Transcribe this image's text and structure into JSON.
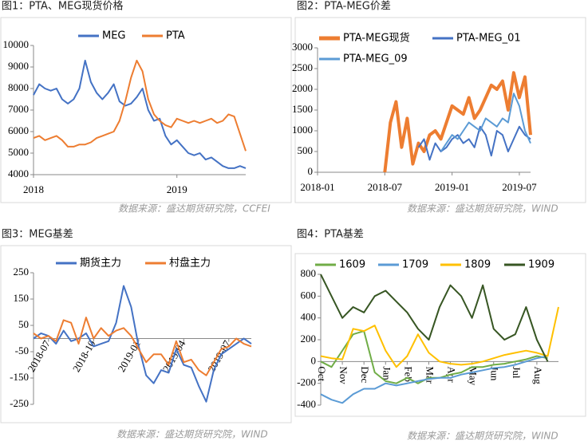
{
  "chart_data": [
    {
      "type": "line",
      "title": "图1：PTA、MEG现货价格",
      "source": "数据来源：盛达期货研究院，CCFEI",
      "categories": [
        "2018",
        null,
        null,
        null,
        null,
        null,
        null,
        null,
        null,
        null,
        null,
        null,
        null,
        null,
        null,
        null,
        null,
        null,
        null,
        null,
        null,
        null,
        null,
        null,
        null,
        "2019",
        null,
        null,
        null,
        null,
        null,
        null,
        null,
        null,
        null,
        null,
        null,
        null
      ],
      "ylim": [
        4000,
        10000
      ],
      "yticks": [
        4000,
        5000,
        6000,
        7000,
        8000,
        9000,
        10000
      ],
      "legend": "top",
      "series": [
        {
          "name": "MEG",
          "color": "#4472c4",
          "values": [
            7700,
            8200,
            8000,
            7900,
            8000,
            7500,
            7300,
            7500,
            8000,
            9300,
            8300,
            7800,
            7500,
            7800,
            8200,
            7400,
            7200,
            7300,
            7600,
            8000,
            7000,
            6500,
            6600,
            5800,
            5400,
            5600,
            5300,
            5000,
            4900,
            5000,
            4700,
            4800,
            4600,
            4400,
            4300,
            4300,
            4400,
            4300
          ]
        },
        {
          "name": "PTA",
          "color": "#ed7d31",
          "values": [
            5700,
            5800,
            5600,
            5700,
            5800,
            5600,
            5300,
            5300,
            5400,
            5400,
            5500,
            5700,
            5800,
            5900,
            6000,
            6500,
            7400,
            8500,
            9300,
            8800,
            7500,
            6800,
            6500,
            6300,
            6200,
            6600,
            6500,
            6400,
            6500,
            6400,
            6500,
            6600,
            6400,
            6500,
            6800,
            6700,
            5900,
            5100
          ]
        }
      ]
    },
    {
      "type": "line",
      "title": "图2：PTA-MEG价差",
      "source": "数据来源：盛达期货研究院，WIND",
      "categories": [
        "2018-01",
        null,
        null,
        null,
        null,
        null,
        null,
        null,
        null,
        null,
        null,
        null,
        "2018-07",
        null,
        null,
        null,
        null,
        null,
        null,
        null,
        null,
        null,
        null,
        null,
        "2019-01",
        null,
        null,
        null,
        null,
        null,
        null,
        null,
        null,
        null,
        null,
        null,
        "2019-07",
        null,
        null
      ],
      "ylim": [
        0,
        3000
      ],
      "yticks": [
        0,
        500,
        1000,
        1500,
        2000,
        2500,
        3000
      ],
      "legend": "upper left",
      "series": [
        {
          "name": "PTA-MEG现货",
          "color": "#ed7d31",
          "values": [
            null,
            null,
            null,
            null,
            null,
            null,
            null,
            null,
            null,
            null,
            null,
            null,
            0,
            1200,
            1700,
            600,
            1300,
            200,
            700,
            500,
            900,
            1000,
            800,
            1200,
            1600,
            1500,
            1400,
            1800,
            1300,
            1500,
            1800,
            2100,
            2000,
            2200,
            1500,
            2400,
            1800,
            2300,
            900
          ]
        },
        {
          "name": "PTA-MEG_01",
          "color": "#4472c4",
          "values": [
            null,
            null,
            null,
            null,
            null,
            null,
            null,
            null,
            null,
            null,
            null,
            null,
            null,
            null,
            null,
            null,
            null,
            null,
            600,
            800,
            300,
            700,
            500,
            600,
            800,
            900,
            700,
            800,
            600,
            1100,
            900,
            400,
            1000,
            900,
            500,
            800,
            1100,
            900,
            800
          ]
        },
        {
          "name": "PTA-MEG_09",
          "color": "#5b9bd5",
          "values": [
            null,
            null,
            null,
            null,
            null,
            null,
            null,
            null,
            null,
            null,
            null,
            null,
            null,
            null,
            null,
            null,
            null,
            null,
            null,
            null,
            null,
            null,
            500,
            700,
            900,
            800,
            1000,
            1200,
            1100,
            1000,
            1300,
            1200,
            1100,
            1300,
            1200,
            1900,
            1600,
            1000,
            700
          ]
        }
      ]
    },
    {
      "type": "line",
      "title": "图3：MEG基差",
      "source": "数据来源：盛达期货研究院，WIND",
      "categories": [
        null,
        null,
        "2018-07",
        null,
        null,
        null,
        null,
        null,
        "2018-10",
        null,
        null,
        null,
        null,
        null,
        "2019-01",
        null,
        null,
        null,
        null,
        null,
        "2019-04",
        null,
        null,
        null,
        null,
        null,
        "2019-07",
        null,
        null,
        null
      ],
      "ylim": [
        -250,
        250
      ],
      "yticks": [
        -250,
        -150,
        -50,
        50,
        150,
        250
      ],
      "legend": "top",
      "series": [
        {
          "name": "期货主力",
          "color": "#4472c4",
          "values": [
            0,
            20,
            10,
            -20,
            30,
            -10,
            0,
            20,
            -30,
            -20,
            -10,
            60,
            200,
            120,
            -30,
            -140,
            -170,
            -120,
            -130,
            -40,
            -100,
            -110,
            -180,
            -240,
            -120,
            -60,
            -40,
            -20,
            0,
            -20
          ]
        },
        {
          "name": "村盘主力",
          "color": "#ed7d31",
          "values": [
            20,
            0,
            10,
            -10,
            70,
            60,
            -20,
            80,
            0,
            40,
            10,
            30,
            40,
            10,
            -40,
            -90,
            -60,
            -60,
            -100,
            -10,
            -90,
            -80,
            -120,
            -140,
            -90,
            -40,
            -30,
            0,
            -20,
            -30
          ]
        }
      ]
    },
    {
      "type": "line",
      "title": "图4：PTA基差",
      "source": "数据来源：盛达期货研究院，WIND",
      "categories": [
        "Oct",
        null,
        "Nov",
        null,
        "Dec",
        null,
        "Jan",
        null,
        "Feb",
        null,
        "Mar",
        null,
        "Apr",
        null,
        "May",
        null,
        "Jun",
        null,
        "Jul",
        null,
        "Aug",
        null,
        null
      ],
      "ylim": [
        -400,
        800
      ],
      "yticks": [
        -400,
        -200,
        0,
        200,
        400,
        600,
        800
      ],
      "legend": "top",
      "series": [
        {
          "name": "1609",
          "color": "#70ad47",
          "values": [
            0,
            -50,
            100,
            250,
            280,
            -100,
            -180,
            -200,
            -150,
            -200,
            -150,
            -150,
            -120,
            -100,
            -50,
            -50,
            -30,
            -20,
            0,
            20,
            50,
            30,
            null
          ]
        },
        {
          "name": "1709",
          "color": "#5b9bd5",
          "values": [
            -300,
            -350,
            -380,
            -300,
            -250,
            -250,
            -200,
            -220,
            -200,
            -180,
            -160,
            -150,
            -150,
            -120,
            -100,
            -80,
            -60,
            -50,
            -30,
            0,
            30,
            50,
            null
          ]
        },
        {
          "name": "1809",
          "color": "#ffc000",
          "values": [
            50,
            30,
            20,
            300,
            280,
            330,
            100,
            -50,
            50,
            250,
            80,
            0,
            -20,
            -30,
            -20,
            0,
            30,
            60,
            80,
            100,
            80,
            50,
            500
          ]
        },
        {
          "name": "1909",
          "color": "#375623",
          "values": [
            800,
            600,
            400,
            500,
            450,
            600,
            650,
            550,
            450,
            300,
            200,
            500,
            700,
            600,
            400,
            700,
            300,
            200,
            250,
            500,
            200,
            0,
            null
          ]
        }
      ]
    }
  ]
}
